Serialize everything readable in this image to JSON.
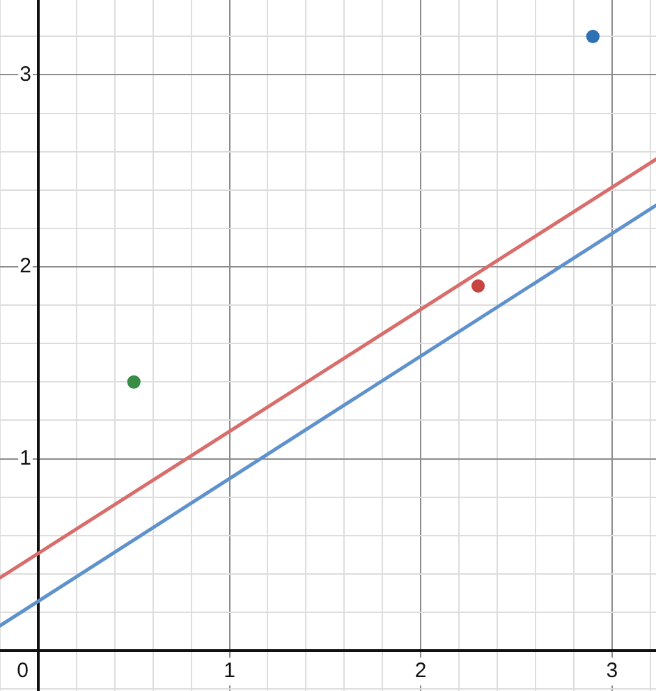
{
  "chart_data": {
    "type": "scatter",
    "xlim": [
      -0.2,
      3.23
    ],
    "ylim": [
      -0.21,
      3.39
    ],
    "xticks": [
      {
        "value": -0.2,
        "label": null
      },
      {
        "value": 0,
        "label": "0"
      },
      {
        "value": 0.2,
        "label": null
      },
      {
        "value": 0.4,
        "label": null
      },
      {
        "value": 0.6,
        "label": null
      },
      {
        "value": 0.8,
        "label": null
      },
      1,
      {
        "value": 1.2,
        "label": null
      },
      {
        "value": 1.4,
        "label": null
      },
      {
        "value": 1.6,
        "label": null
      },
      {
        "value": 1.8,
        "label": null
      },
      2,
      {
        "value": 2.2,
        "label": null
      },
      {
        "value": 2.4,
        "label": null
      },
      {
        "value": 2.6,
        "label": null
      },
      {
        "value": 2.8,
        "label": null
      },
      3,
      {
        "value": 3.2,
        "label": null
      }
    ],
    "yticks": [
      {
        "value": -0.2,
        "label": null
      },
      {
        "value": 0,
        "label": null
      },
      {
        "value": 0.2,
        "label": null
      },
      {
        "value": 0.4,
        "label": null
      },
      {
        "value": 0.6,
        "label": null
      },
      {
        "value": 0.8,
        "label": null
      },
      1,
      {
        "value": 1.2,
        "label": null
      },
      {
        "value": 1.4,
        "label": null
      },
      {
        "value": 1.6,
        "label": null
      },
      {
        "value": 1.8,
        "label": null
      },
      2,
      {
        "value": 2.2,
        "label": null
      },
      {
        "value": 2.4,
        "label": null
      },
      {
        "value": 2.6,
        "label": null
      },
      {
        "value": 2.8,
        "label": null
      },
      3,
      {
        "value": 3.2,
        "label": null
      }
    ],
    "grid": true,
    "legend": false,
    "series": [
      {
        "type": "line",
        "color": "#d86e6c",
        "x": [
          -0.2,
          3.23
        ],
        "values": [
          0.38,
          2.56
        ]
      },
      {
        "type": "line",
        "color": "#5f92cc",
        "x": [
          -0.2,
          3.23
        ],
        "values": [
          0.13,
          2.32
        ]
      },
      {
        "marker": "circle",
        "x": [
          0.5,
          2.3,
          2.9
        ],
        "values": [
          1.4,
          1.9,
          3.2
        ],
        "colors": [
          "#388c46",
          "#c74440",
          "#2d70b3"
        ]
      }
    ]
  }
}
